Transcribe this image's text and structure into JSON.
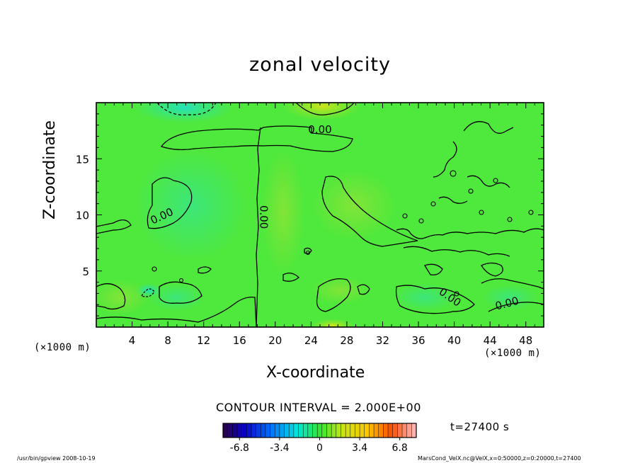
{
  "chart_data": {
    "type": "heatmap",
    "title": "zonal velocity",
    "xlabel": "X-coordinate",
    "ylabel": "Z-coordinate",
    "x_unit_label": "(×1000 m)",
    "y_unit_label": "(×1000 m)",
    "xlim": [
      0,
      50
    ],
    "ylim": [
      0,
      20
    ],
    "x_ticks": [
      4,
      8,
      12,
      16,
      20,
      24,
      28,
      32,
      36,
      40,
      44,
      48
    ],
    "y_ticks": [
      5,
      10,
      15
    ],
    "contour_labels": [
      "0.00",
      "0.00",
      "0.00",
      "0.00",
      "0.00"
    ],
    "contour_interval_text": "CONTOUR INTERVAL = 2.000E+00",
    "colorbar": {
      "min": -8.2,
      "max": 8.2,
      "tick_labels": [
        "-6.8",
        "-3.4",
        "0",
        "3.4",
        "6.8"
      ],
      "tick_values": [
        -6.8,
        -3.4,
        0,
        3.4,
        6.8
      ]
    },
    "time_label": "t=27400 s",
    "grid": false
  },
  "footer": {
    "left": "/usr/bin/gpview   2008-10-19",
    "right": "MarsCond_VelX.nc@VelX,x=0:50000,z=0:20000,t=27400"
  },
  "colors": {
    "field_background": "#4fe83c",
    "positive_tint": "#c8e61e",
    "negative_tint": "#2fe6a8",
    "contour_line": "#000000"
  }
}
